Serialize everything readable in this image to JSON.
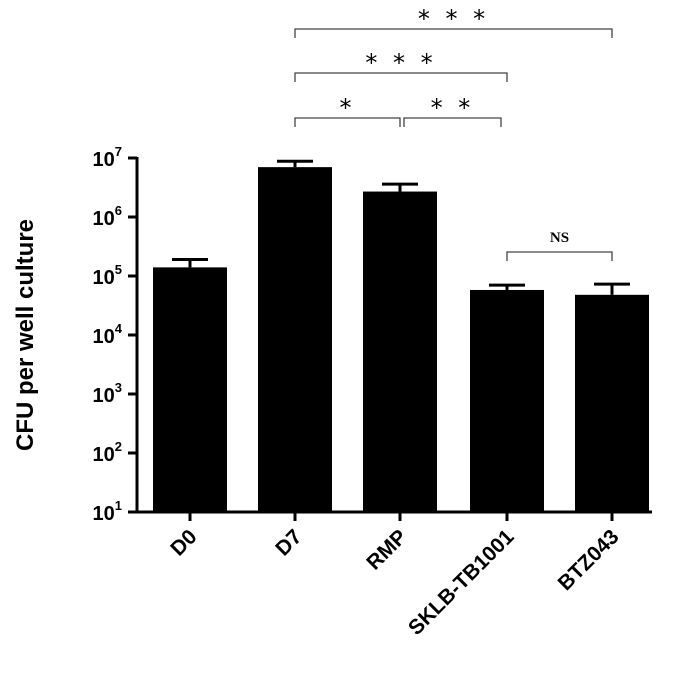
{
  "chart_data": {
    "type": "bar",
    "ylabel": "CFU per well culture",
    "yscale": "log",
    "ylim": [
      10,
      10000000
    ],
    "yticks": [
      {
        "value": 10,
        "base": "10",
        "exp": "1"
      },
      {
        "value": 100,
        "base": "10",
        "exp": "2"
      },
      {
        "value": 1000,
        "base": "10",
        "exp": "3"
      },
      {
        "value": 10000,
        "base": "10",
        "exp": "4"
      },
      {
        "value": 100000,
        "base": "10",
        "exp": "5"
      },
      {
        "value": 1000000,
        "base": "10",
        "exp": "6"
      },
      {
        "value": 10000000,
        "base": "10",
        "exp": "7"
      }
    ],
    "categories": [
      "D0",
      "D7",
      "RMP",
      "SKLB-TB1001",
      "BTZ043"
    ],
    "values": [
      140000,
      7000000,
      2700000,
      58000,
      48000
    ],
    "error_upper": [
      190000,
      8800000,
      3600000,
      70000,
      73000
    ],
    "significance": [
      {
        "from": 1,
        "to": 2,
        "label": "*"
      },
      {
        "from": 2,
        "to": 3,
        "label": "* *"
      },
      {
        "from": 3,
        "to": 4,
        "label": "NS"
      },
      {
        "from": 1,
        "to": 3,
        "label": "* * *"
      },
      {
        "from": 1,
        "to": 4,
        "label": "* * *"
      }
    ],
    "bar_color": "#000000",
    "grid": false,
    "legend": "none"
  }
}
